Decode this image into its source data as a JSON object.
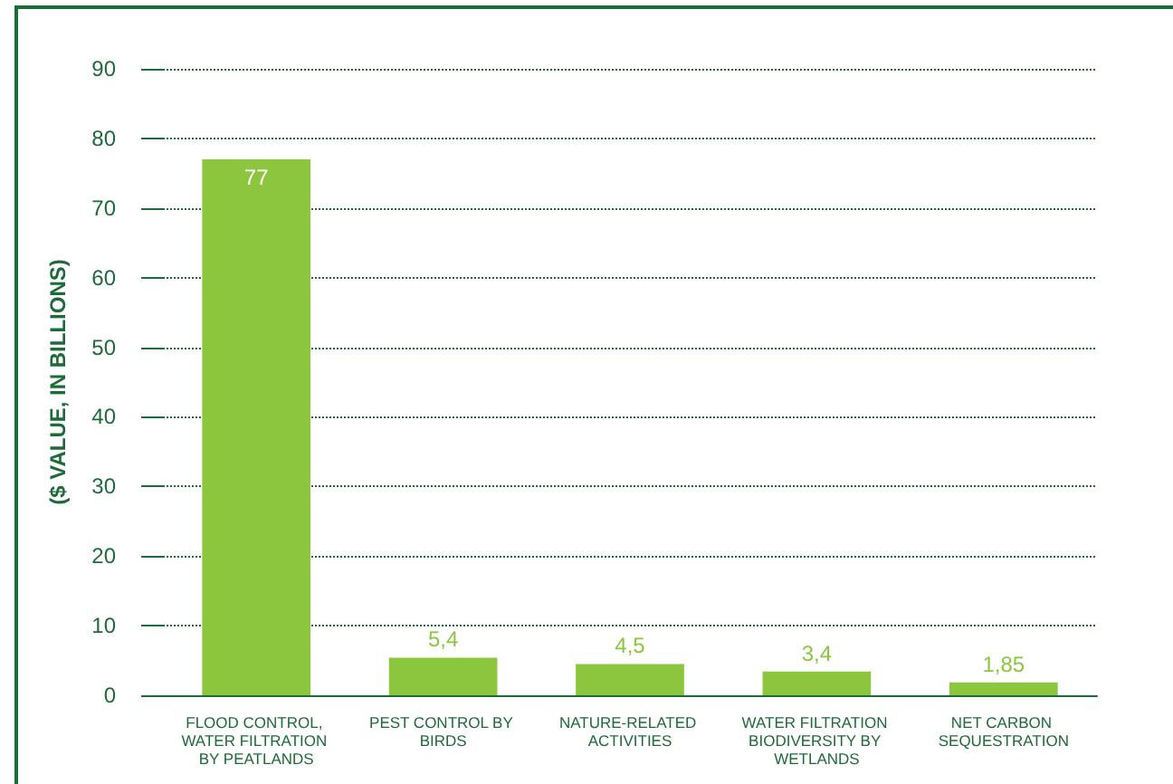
{
  "chart_data": {
    "type": "bar",
    "ylabel": "($ VALUE, IN BILLIONS)",
    "categories": [
      "FLOOD CONTROL, WATER FILTRATION BY PEATLANDS",
      "PEST CONTROL BY BIRDS",
      "NATURE-RELATED ACTIVITIES",
      "WATER FILTRATION BIODIVERSITY BY WETLANDS",
      "NET CARBON SEQUESTRATION"
    ],
    "values": [
      77,
      5.4,
      4.5,
      3.4,
      1.85
    ],
    "value_labels": [
      "77",
      "5,4",
      "4,5",
      "3,4",
      "1,85"
    ],
    "color": "#8cc63f",
    "ylim": [
      0,
      90
    ],
    "yticks": [
      0,
      10,
      20,
      30,
      40,
      50,
      60,
      70,
      80,
      90
    ],
    "grid": "y",
    "line_style": "dotted"
  }
}
